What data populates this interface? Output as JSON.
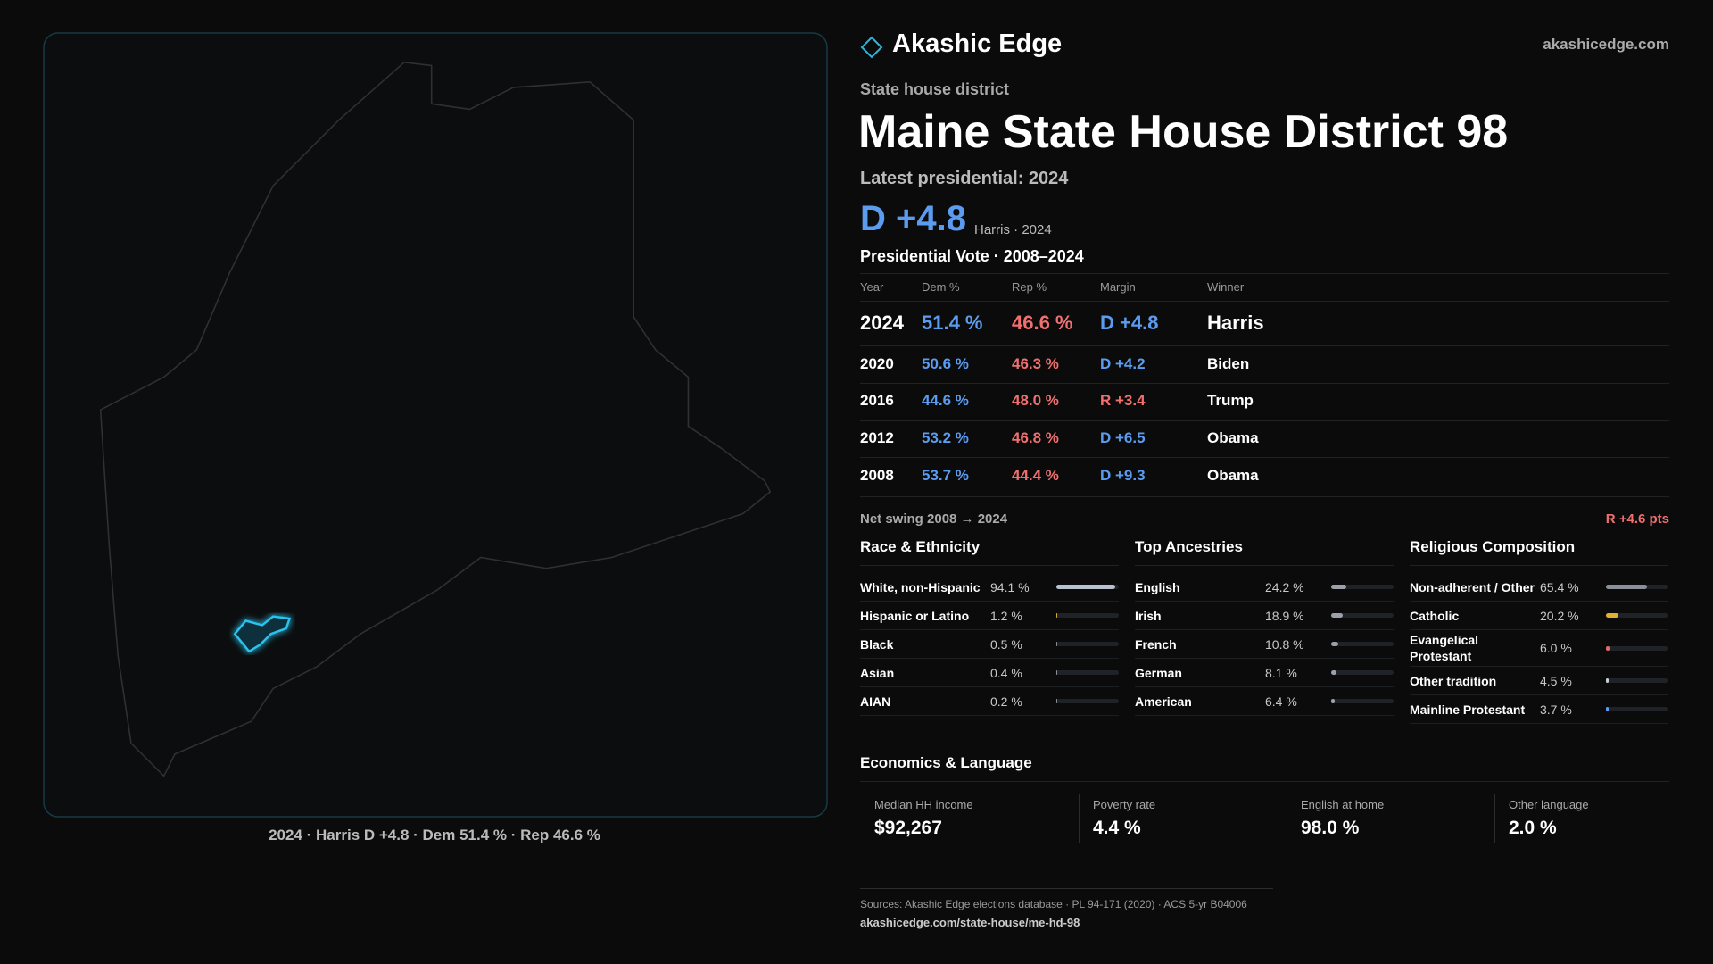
{
  "header": {
    "brand": "Akashic Edge",
    "site": "akashicedge.com"
  },
  "map": {
    "caption": "2024 · Harris D +4.8 · Dem 51.4 % · Rep 46.6 %"
  },
  "district": {
    "kind": "State house district",
    "title": "Maine State House District 98",
    "latest": "Latest presidential: 2024",
    "margin": "D +4.8",
    "margin_note": "Harris · 2024"
  },
  "presidential": {
    "title": "Presidential Vote · 2008–2024",
    "columns": [
      "Year",
      "Dem %",
      "Rep %",
      "Margin",
      "Winner"
    ],
    "rows": [
      [
        "2024",
        "51.4 %",
        "46.6 %",
        "D +4.8",
        "Harris"
      ],
      [
        "2020",
        "50.6 %",
        "46.3 %",
        "D +4.2",
        "Biden"
      ],
      [
        "2016",
        "44.6 %",
        "48.0 %",
        "R +3.4",
        "Trump"
      ],
      [
        "2012",
        "53.2 %",
        "46.8 %",
        "D +6.5",
        "Obama"
      ],
      [
        "2008",
        "53.7 %",
        "44.4 %",
        "D +9.3",
        "Obama"
      ]
    ],
    "net_swing_label": "Net swing 2008 → 2024",
    "net_swing_value": "R +4.6 pts"
  },
  "race": {
    "title": "Race & Ethnicity",
    "rows": [
      {
        "name": "White, non-Hispanic",
        "share": 94.1,
        "share_label": "94.1 %",
        "color": "#b9c1cc"
      },
      {
        "name": "Hispanic or Latino",
        "share": 1.2,
        "share_label": "1.2 %",
        "color": "#d9a92c"
      },
      {
        "name": "Black",
        "share": 0.5,
        "share_label": "0.5 %",
        "color": "#8a9099"
      },
      {
        "name": "Asian",
        "share": 0.4,
        "share_label": "0.4 %",
        "color": "#8a9099"
      },
      {
        "name": "AIAN",
        "share": 0.2,
        "share_label": "0.2 %",
        "color": "#8a9099"
      }
    ]
  },
  "ancestry": {
    "title": "Top Ancestries",
    "rows": [
      {
        "name": "English",
        "share": 24.2,
        "share_label": "24.2 %",
        "color": "#9aa1aa"
      },
      {
        "name": "Irish",
        "share": 18.9,
        "share_label": "18.9 %",
        "color": "#9aa1aa"
      },
      {
        "name": "French",
        "share": 10.8,
        "share_label": "10.8 %",
        "color": "#9aa1aa"
      },
      {
        "name": "German",
        "share": 8.1,
        "share_label": "8.1 %",
        "color": "#9aa1aa"
      },
      {
        "name": "American",
        "share": 6.4,
        "share_label": "6.4 %",
        "color": "#9aa1aa"
      }
    ]
  },
  "religion": {
    "title": "Religious Composition",
    "rows": [
      {
        "name": "Non-adherent / Other",
        "share": 65.4,
        "share_label": "65.4 %",
        "color": "#8a9099"
      },
      {
        "name": "Catholic",
        "share": 20.2,
        "share_label": "20.2 %",
        "color": "#e0b030"
      },
      {
        "name": "Evangelical Protestant",
        "share": 6.0,
        "share_label": "6.0 %",
        "color": "#e06a6a"
      },
      {
        "name": "Other tradition",
        "share": 4.5,
        "share_label": "4.5 %",
        "color": "#c9ced6"
      },
      {
        "name": "Mainline Protestant",
        "share": 3.7,
        "share_label": "3.7 %",
        "color": "#5b9cf0"
      }
    ]
  },
  "economics": {
    "title": "Economics & Language",
    "items": [
      {
        "label": "Median HH income",
        "value": "$92,267"
      },
      {
        "label": "Poverty rate",
        "value": "4.4 %"
      },
      {
        "label": "English at home",
        "value": "98.0 %"
      },
      {
        "label": "Other language",
        "value": "2.0 %"
      }
    ]
  },
  "footer": {
    "sources": "Sources: Akashic Edge elections database · PL 94-171 (2020) · ACS 5-yr B04006",
    "url": "akashicedge.com/state-house/me-hd-98"
  }
}
